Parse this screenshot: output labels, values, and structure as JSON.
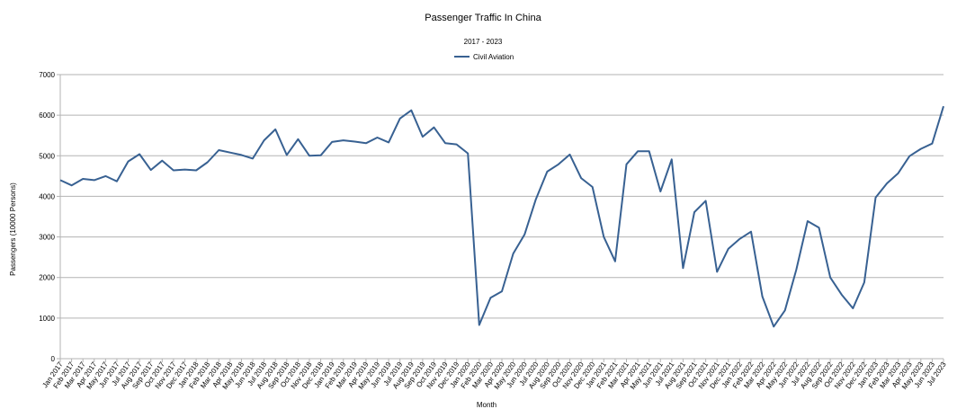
{
  "chart_data": {
    "type": "line",
    "title": "Passenger Traffic In China",
    "subtitle": "2017 - 2023",
    "x_label": "Month",
    "y_label": "Passengers (10000 Persons)",
    "categories": [
      "Jan 2017",
      "Feb 2017",
      "Mar 2017",
      "Apr 2017",
      "May 2017",
      "Jun 2017",
      "Jul 2017",
      "Aug 2017",
      "Sep 2017",
      "Oct 2017",
      "Nov 2017",
      "Dec 2017",
      "Jan 2018",
      "Feb 2018",
      "Mar 2018",
      "Apr 2018",
      "May 2018",
      "Jun 2018",
      "Jul 2018",
      "Aug 2018",
      "Sep 2018",
      "Oct 2018",
      "Nov 2018",
      "Dec 2018",
      "Jan 2019",
      "Feb 2019",
      "Mar 2019",
      "Apr 2019",
      "May 2019",
      "Jun 2019",
      "Jul 2019",
      "Aug 2019",
      "Sep 2019",
      "Oct 2019",
      "Nov 2019",
      "Dec 2019",
      "Jan 2020",
      "Feb 2020",
      "Mar 2020",
      "Apr 2020",
      "May 2020",
      "Jun 2020",
      "Jul 2020",
      "Aug 2020",
      "Sep 2020",
      "Oct 2020",
      "Nov 2020",
      "Dec 2020",
      "Jan 2021",
      "Feb 2021",
      "Mar 2021",
      "Apr 2021",
      "May 2021",
      "Jun 2021",
      "Jul 2021",
      "Aug 2021",
      "Sep 2021",
      "Oct 2021",
      "Nov 2021",
      "Dec 2021",
      "Jan 2022",
      "Feb 2022",
      "Mar 2022",
      "Apr 2022",
      "May 2022",
      "Jun 2022",
      "Jul 2022",
      "Aug 2022",
      "Sep 2022",
      "Oct 2022",
      "Nov 2022",
      "Dec 2022",
      "Jan 2023",
      "Feb 2023",
      "Mar 2023",
      "Apr 2023",
      "May 2023",
      "Jun 2023",
      "Jul 2023"
    ],
    "series": [
      {
        "name": "Civil Aviation",
        "color": "#386192",
        "values": [
          4400,
          4270,
          4430,
          4400,
          4500,
          4370,
          4860,
          5040,
          4650,
          4880,
          4640,
          4660,
          4640,
          4840,
          5140,
          5080,
          5020,
          4930,
          5380,
          5650,
          5020,
          5410,
          5000,
          5010,
          5340,
          5380,
          5350,
          5310,
          5450,
          5330,
          5920,
          6120,
          5470,
          5700,
          5310,
          5280,
          5060,
          830,
          1500,
          1660,
          2590,
          3060,
          3930,
          4610,
          4790,
          5030,
          4450,
          4230,
          3000,
          2400,
          4790,
          5110,
          5110,
          4120,
          4910,
          2230,
          3610,
          3890,
          2140,
          2710,
          2950,
          3130,
          1530,
          790,
          1190,
          2190,
          3390,
          3230,
          2000,
          1580,
          1240,
          1880,
          3970,
          4320,
          4570,
          4990,
          5170,
          5300,
          6220
        ]
      }
    ],
    "ylim": [
      0,
      7000
    ],
    "yticks": [
      0,
      1000,
      2000,
      3000,
      4000,
      5000,
      6000,
      7000
    ],
    "grid": true,
    "legend": "top"
  }
}
